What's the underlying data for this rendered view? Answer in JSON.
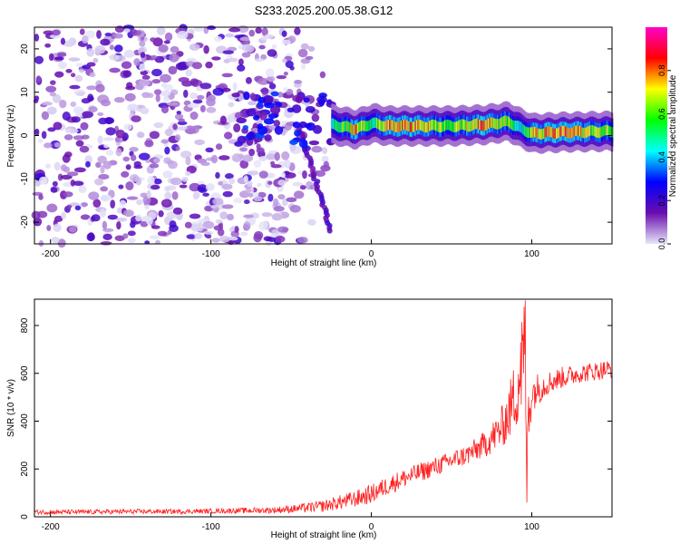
{
  "figure": {
    "title": "S233.2025.200.05.38.G12"
  },
  "chart_data": [
    {
      "type": "heatmap",
      "xlabel": "Height of straight line (km)",
      "ylabel": "Frequency (Hz)",
      "xlim": [
        -210,
        150
      ],
      "ylim": [
        -25,
        25
      ],
      "x_ticks": [
        -200,
        -100,
        0,
        100
      ],
      "y_ticks": [
        -20,
        -10,
        0,
        10,
        20
      ],
      "colorbar": {
        "label": "Normalized spectral amplitude",
        "range": [
          0,
          1
        ],
        "ticks": [
          0.0,
          0.2,
          0.4,
          0.6,
          0.8
        ],
        "colormap": [
          "#e6e6fa",
          "#6a0dad",
          "#0000ff",
          "#00ffff",
          "#00ff00",
          "#ffff00",
          "#ff0000",
          "#ff00cc"
        ]
      },
      "ridge": {
        "description_points": [
          {
            "x": -25,
            "y": 2.5,
            "amplitude": 0.45
          },
          {
            "x": -10,
            "y": 1.5,
            "amplitude": 0.75
          },
          {
            "x": 0,
            "y": 2.8,
            "amplitude": 0.5
          },
          {
            "x": 10,
            "y": 2.2,
            "amplitude": 0.8
          },
          {
            "x": 30,
            "y": 2.2,
            "amplitude": 0.75
          },
          {
            "x": 50,
            "y": 2.2,
            "amplitude": 0.6
          },
          {
            "x": 70,
            "y": 2.5,
            "amplitude": 0.8
          },
          {
            "x": 85,
            "y": 3.2,
            "amplitude": 0.65
          },
          {
            "x": 92,
            "y": 1.8,
            "amplitude": 0.4
          },
          {
            "x": 100,
            "y": 0.5,
            "amplitude": 0.7
          },
          {
            "x": 120,
            "y": 0.8,
            "amplitude": 0.8
          },
          {
            "x": 150,
            "y": 1.0,
            "amplitude": 0.6
          }
        ],
        "noise_region_x": [
          -210,
          -40
        ],
        "diagonal_streak": {
          "x_start": -45,
          "y_start": 2,
          "x_end": -25,
          "y_end": -22
        }
      }
    },
    {
      "type": "line",
      "xlabel": "Height of straight line (km)",
      "ylabel": "SNR (10 * v/v)",
      "xlim": [
        -210,
        150
      ],
      "ylim": [
        0,
        910
      ],
      "x_ticks": [
        -200,
        -100,
        0,
        100
      ],
      "y_ticks": [
        0,
        200,
        400,
        600,
        800
      ],
      "color": "#ff2020",
      "series": [
        {
          "x": [
            -210,
            -180,
            -150,
            -120,
            -100,
            -80,
            -60,
            -45,
            -30,
            -20,
            -10,
            0,
            10,
            20,
            30,
            40,
            50,
            60,
            70,
            80,
            85,
            90,
            95,
            97,
            100,
            110,
            120,
            130,
            140,
            150
          ],
          "y": [
            20,
            20,
            22,
            22,
            24,
            26,
            28,
            35,
            45,
            60,
            75,
            95,
            130,
            160,
            185,
            210,
            235,
            260,
            300,
            360,
            420,
            520,
            680,
            380,
            520,
            560,
            585,
            600,
            610,
            620
          ],
          "noise_amplitude": [
            10,
            10,
            10,
            10,
            10,
            12,
            14,
            18,
            25,
            30,
            35,
            40,
            40,
            40,
            40,
            40,
            40,
            45,
            55,
            80,
            110,
            160,
            280,
            200,
            80,
            50,
            45,
            40,
            40,
            40
          ],
          "spikes": [
            {
              "x": 96,
              "y": 905
            },
            {
              "x": 97,
              "y": 60
            },
            {
              "x": 93,
              "y": 730
            }
          ]
        }
      ]
    }
  ]
}
